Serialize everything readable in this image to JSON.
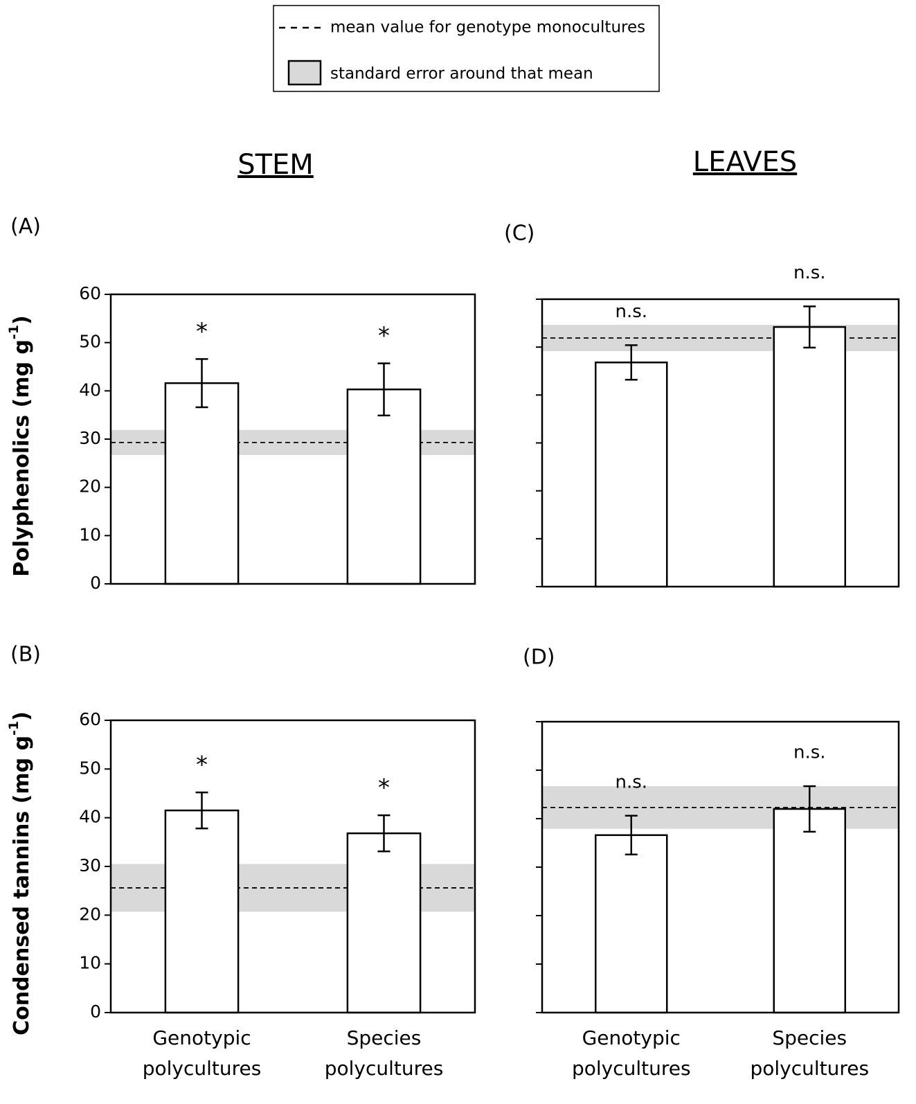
{
  "legend": {
    "line": "mean value for genotype monocultures",
    "band": "standard error around that mean"
  },
  "columns": [
    "STEM",
    "LEAVES"
  ],
  "chart_data": [
    {
      "type": "bar",
      "panel": "(A)",
      "ylabel": [
        "Polyphenolics (mg g",
        "-1",
        ")"
      ],
      "values": [
        41.6,
        40.3
      ],
      "errors": [
        5,
        5.4
      ],
      "annotations": [
        "*",
        "*"
      ],
      "reference_mean": 29.3,
      "reference_se": 2.6,
      "ylim": [
        0,
        60
      ],
      "yticks": [
        0,
        10,
        20,
        30,
        40,
        50,
        60
      ],
      "show_ytick_labels": true,
      "color": "#ffffff",
      "band_color": "#d9d9d9"
    },
    {
      "type": "bar",
      "panel": "(B)",
      "ylabel": [
        "Condensed tannins (mg g",
        "-1",
        ")"
      ],
      "categories": [
        "Genotypic polycultures",
        "Species polycultures"
      ],
      "values": [
        41.5,
        36.8
      ],
      "errors": [
        3.7,
        3.7
      ],
      "annotations": [
        "*",
        "*"
      ],
      "reference_mean": 25.6,
      "reference_se": 4.9,
      "ylim": [
        0,
        60
      ],
      "yticks": [
        0,
        10,
        20,
        30,
        40,
        50,
        60
      ],
      "show_ytick_labels": true,
      "color": "#ffffff",
      "band_color": "#d9d9d9"
    },
    {
      "type": "bar",
      "panel": "(C)",
      "values": [
        46.8,
        54.2
      ],
      "errors": [
        3.6,
        4.3
      ],
      "annotations": [
        "n.s.",
        "n.s."
      ],
      "reference_mean": 51.9,
      "reference_se": 2.75,
      "ylim": [
        0,
        60
      ],
      "yticks": [
        0,
        10,
        20,
        30,
        40,
        50,
        60
      ],
      "show_ytick_labels": false,
      "color": "#ffffff",
      "band_color": "#d9d9d9"
    },
    {
      "type": "bar",
      "panel": "(D)",
      "categories": [
        "Genotypic polycultures",
        "Species polycultures"
      ],
      "values": [
        36.6,
        42
      ],
      "errors": [
        4,
        4.7
      ],
      "annotations": [
        "n.s.",
        "n.s."
      ],
      "reference_mean": 42.3,
      "reference_se": 4.4,
      "ylim": [
        0,
        60
      ],
      "yticks": [
        0,
        10,
        20,
        30,
        40,
        50,
        60
      ],
      "show_ytick_labels": false,
      "color": "#ffffff",
      "band_color": "#d9d9d9"
    }
  ]
}
